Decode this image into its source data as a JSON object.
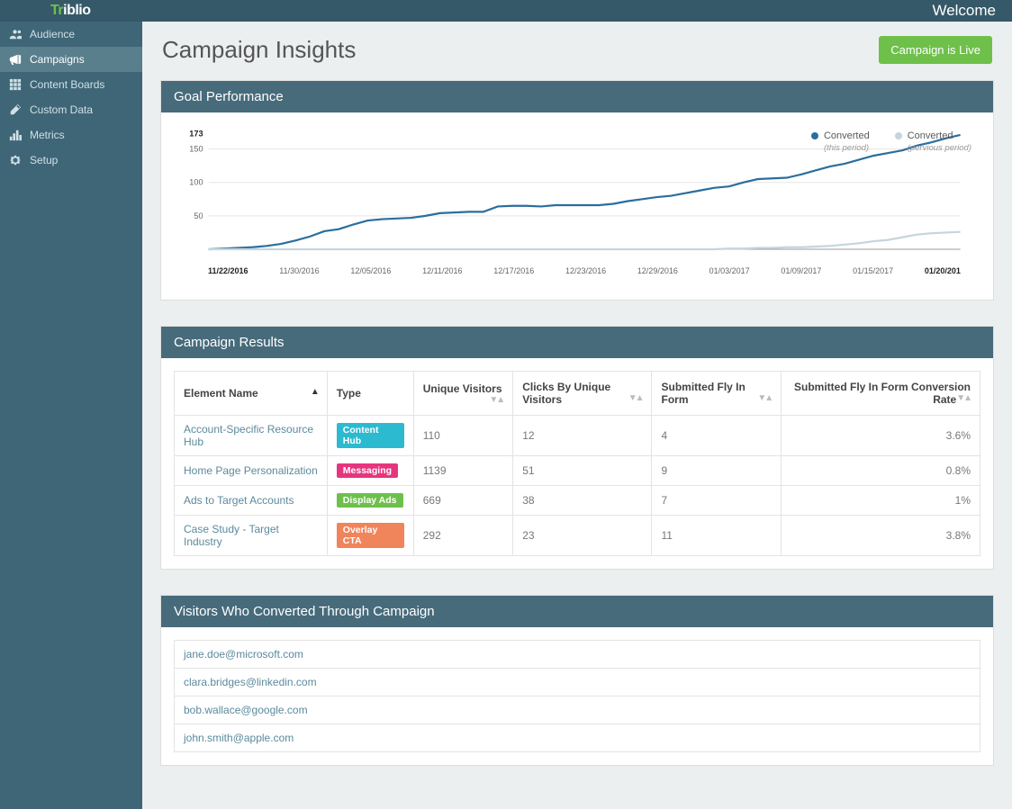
{
  "topbar": {
    "logo_green": "Tr",
    "logo_white": "iblio",
    "welcome": "Welcome"
  },
  "sidebar": {
    "items": [
      {
        "label": "Audience",
        "icon": "users"
      },
      {
        "label": "Campaigns",
        "icon": "megaphone",
        "active": true
      },
      {
        "label": "Content Boards",
        "icon": "grid"
      },
      {
        "label": "Custom Data",
        "icon": "pencil"
      },
      {
        "label": "Metrics",
        "icon": "bars"
      },
      {
        "label": "Setup",
        "icon": "cog"
      }
    ]
  },
  "page": {
    "title": "Campaign Insights",
    "live_button": "Campaign is Live"
  },
  "goal_panel": {
    "title": "Goal Performance",
    "legend": [
      {
        "label": "Converted",
        "sub": "(this period)",
        "color": "#2a6e9e"
      },
      {
        "label": "Converted",
        "sub": "(pervious period)",
        "color": "#c5d5dd"
      }
    ],
    "chart": {
      "type": "line",
      "background": "#ffffff",
      "grid_color": "#e5e5e5",
      "y_max_label": "173",
      "y_ticks": [
        50,
        100,
        150
      ],
      "y_range": [
        0,
        175
      ],
      "x_labels": [
        "11/22/2016",
        "11/30/2016",
        "12/05/2016",
        "12/11/2016",
        "12/17/2016",
        "12/23/2016",
        "12/29/2016",
        "01/03/2017",
        "01/09/2017",
        "01/15/2017",
        "01/20/201"
      ],
      "series": [
        {
          "name": "this_period",
          "color": "#2a6e9e",
          "width": 2.2,
          "points": [
            0,
            1,
            2,
            3,
            5,
            8,
            13,
            19,
            27,
            30,
            37,
            43,
            45,
            46,
            47,
            50,
            54,
            55,
            56,
            56,
            64,
            65,
            65,
            64,
            66,
            66,
            66,
            66,
            68,
            72,
            75,
            78,
            80,
            84,
            88,
            92,
            94,
            100,
            105,
            106,
            107,
            112,
            118,
            124,
            128,
            134,
            140,
            144,
            148,
            155,
            160,
            166,
            171
          ]
        },
        {
          "name": "prev_period",
          "color": "#c5d5dd",
          "width": 2.2,
          "points": [
            0,
            0,
            0,
            0,
            0,
            0,
            0,
            0,
            0,
            0,
            0,
            0,
            0,
            0,
            0,
            0,
            0,
            0,
            0,
            0,
            0,
            0,
            0,
            0,
            0,
            0,
            0,
            0,
            0,
            0,
            0,
            0,
            0,
            0,
            0,
            0,
            1,
            1,
            2,
            2,
            3,
            3,
            4,
            5,
            7,
            9,
            12,
            14,
            18,
            22,
            24,
            25,
            26
          ]
        }
      ]
    }
  },
  "results_panel": {
    "title": "Campaign Results",
    "columns": [
      {
        "label": "Element Name",
        "sort": "single-up"
      },
      {
        "label": "Type",
        "sort": "none"
      },
      {
        "label": "Unique Visitors",
        "sort": "both"
      },
      {
        "label": "Clicks By Unique Visitors",
        "sort": "both"
      },
      {
        "label": "Submitted Fly In Form",
        "sort": "both"
      },
      {
        "label": "Submitted Fly In Form Conversion Rate",
        "sort": "both",
        "align": "right"
      }
    ],
    "tags": {
      "Content Hub": "#2cbad0",
      "Messaging": "#e6357f",
      "Display Ads": "#6ec04a",
      "Overlay CTA": "#f0845b"
    },
    "rows": [
      {
        "name": "Account-Specific Resource Hub",
        "type": "Content Hub",
        "uv": "110",
        "clicks": "12",
        "form": "4",
        "rate": "3.6%"
      },
      {
        "name": "Home Page Personalization",
        "type": "Messaging",
        "uv": "1139",
        "clicks": "51",
        "form": "9",
        "rate": "0.8%"
      },
      {
        "name": "Ads to Target Accounts",
        "type": "Display Ads",
        "uv": "669",
        "clicks": "38",
        "form": "7",
        "rate": "1%"
      },
      {
        "name": "Case Study - Target Industry",
        "type": "Overlay CTA",
        "uv": "292",
        "clicks": "23",
        "form": "11",
        "rate": "3.8%"
      }
    ]
  },
  "visitors_panel": {
    "title": "Visitors Who Converted Through Campaign",
    "rows": [
      "jane.doe@microsoft.com",
      "clara.bridges@linkedin.com",
      "bob.wallace@google.com",
      "john.smith@apple.com"
    ]
  }
}
